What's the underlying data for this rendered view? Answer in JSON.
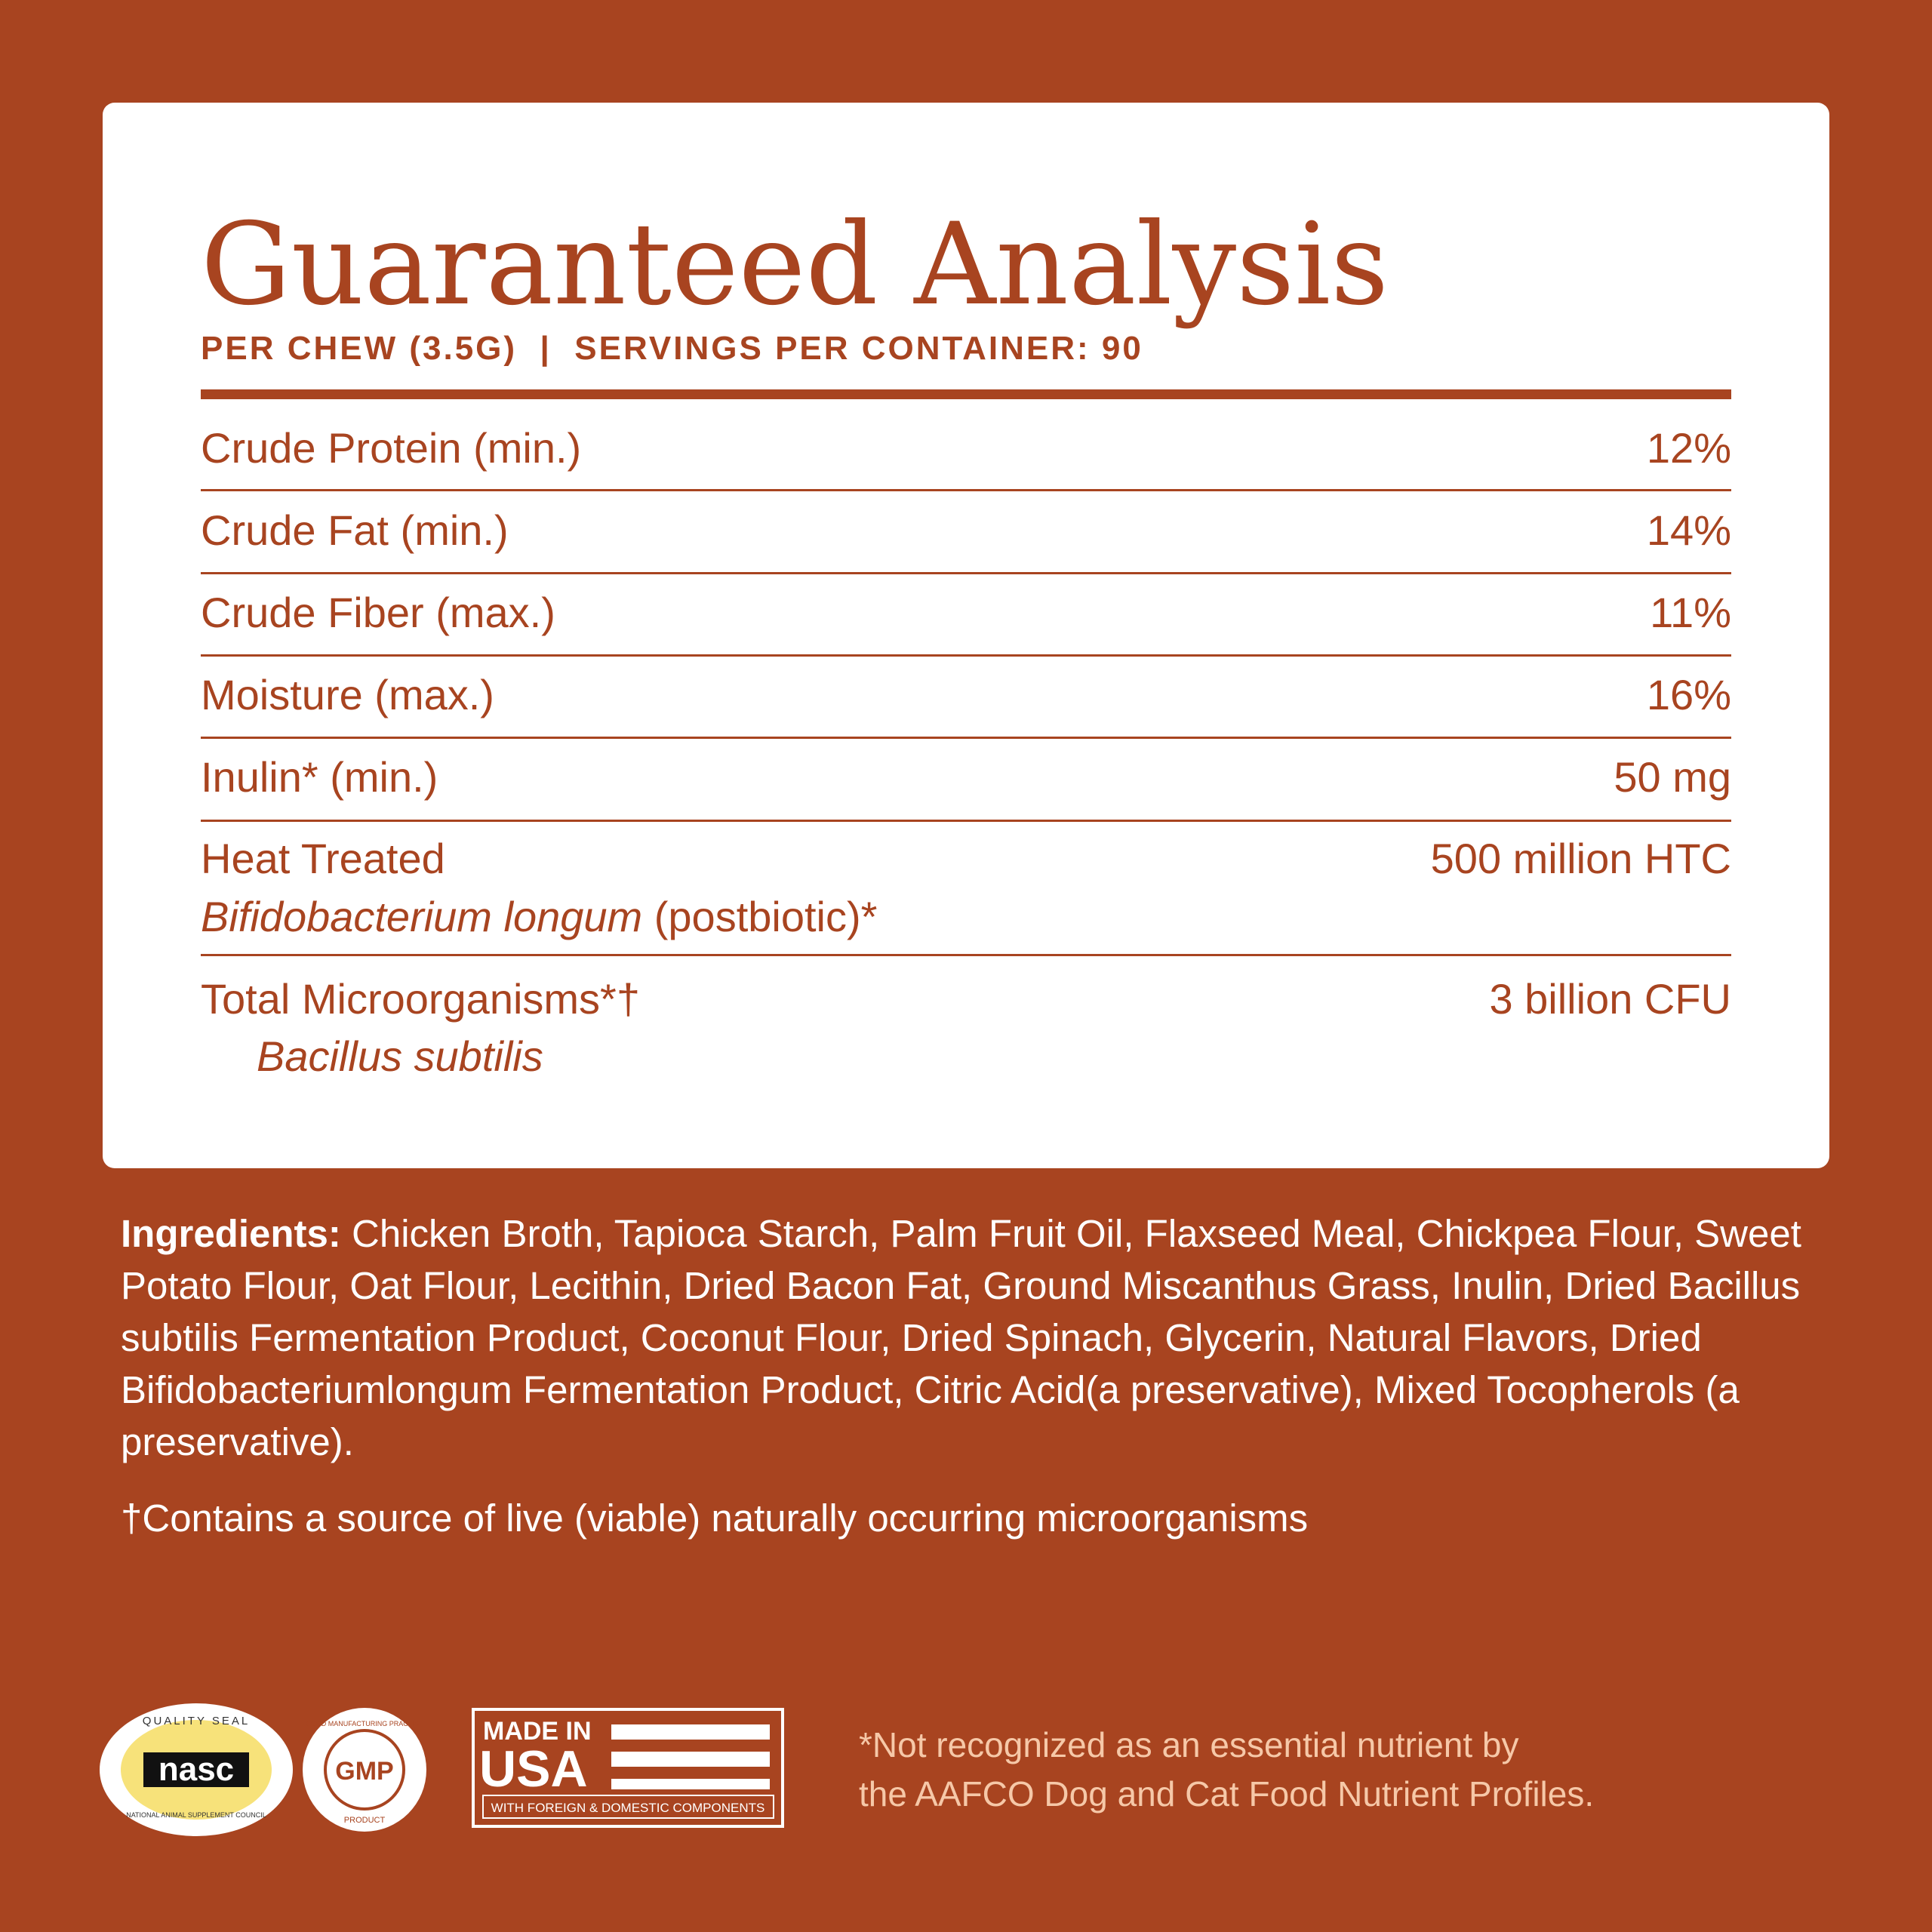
{
  "header": {
    "title": "Guaranteed Analysis",
    "subtitle": "PER CHEW (3.5G)  |  SERVINGS PER CONTAINER: 90"
  },
  "rows": [
    {
      "label": "Crude Protein (min.)",
      "value": "12%"
    },
    {
      "label": "Crude Fat (min.)",
      "value": "14%"
    },
    {
      "label": "Crude Fiber (max.)",
      "value": "11%"
    },
    {
      "label": "Moisture (max.)",
      "value": "16%"
    },
    {
      "label": "Inulin* (min.)",
      "value": "50 mg"
    },
    {
      "label": "Heat Treated",
      "sublabel_italic": "Bifidobacterium longum",
      "sublabel_rest": "(postbiotic)*",
      "value": "500 million HTC"
    },
    {
      "label": "Total Microorganisms*†",
      "sublabel_italic": "Bacillus subtilis",
      "value": "3 billion CFU"
    }
  ],
  "ingredients": {
    "heading": "Ingredients:",
    "text": "Chicken Broth, Tapioca Starch, Palm Fruit Oil, Flaxseed Meal, Chickpea Flour, Sweet Potato Flour, Oat Flour, Lecithin, Dried Bacon Fat, Ground Miscanthus Grass, Inulin, Dried Bacillus subtilis Fermentation Product, Coconut Flour, Dried Spinach, Glycerin, Natural Flavors, Dried Bifidobacteriumlongum Fermentation Product, Citric Acid(a preservative), Mixed Tocopherols (a preservative)."
  },
  "live_note": "†Contains a source of live (viable) naturally occurring microorganisms",
  "badges": {
    "nasc": {
      "top": "QUALITY SEAL",
      "mark": "nasc",
      "bottom": "NATIONAL ANIMAL SUPPLEMENT COUNCIL"
    },
    "gmp": {
      "mark": "GMP",
      "ring": "GOOD MANUFACTURING PRACTICE",
      "bottom": "PRODUCT"
    },
    "usa": {
      "line1": "MADE IN",
      "line2": "USA",
      "bottom": "WITH FOREIGN & DOMESTIC COMPONENTS"
    }
  },
  "aafco_note": {
    "line1": "*Not recognized as an essential nutrient by",
    "line2": "the AAFCO Dog and Cat Food Nutrient Profiles."
  }
}
